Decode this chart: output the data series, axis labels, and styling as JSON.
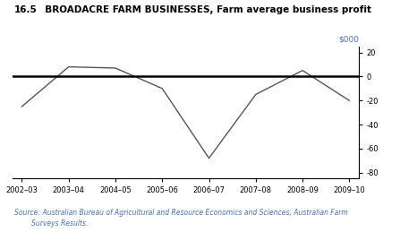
{
  "title_prefix": "16.5",
  "title_main": "  BROADACRE FARM BUSINESSES, Farm average business profit",
  "x_labels": [
    "2002–03",
    "2003–04",
    "2004–05",
    "2005–06",
    "2006–07",
    "2007–08",
    "2008–09",
    "2009–10"
  ],
  "y_values": [
    -25,
    8,
    7,
    -10,
    -68,
    -15,
    5,
    -20
  ],
  "ylabel": "$000",
  "ylim": [
    -85,
    25
  ],
  "yticks": [
    20,
    0,
    -20,
    -40,
    -60,
    -80
  ],
  "source_text": "Source: Australian Bureau of Agricultural and Resource Economics and Sciences, Australian Farm\n        Surveys Results.",
  "line_color": "#555555",
  "zero_line_color": "#000000",
  "ylabel_color": "#4472c4",
  "background_color": "#ffffff"
}
